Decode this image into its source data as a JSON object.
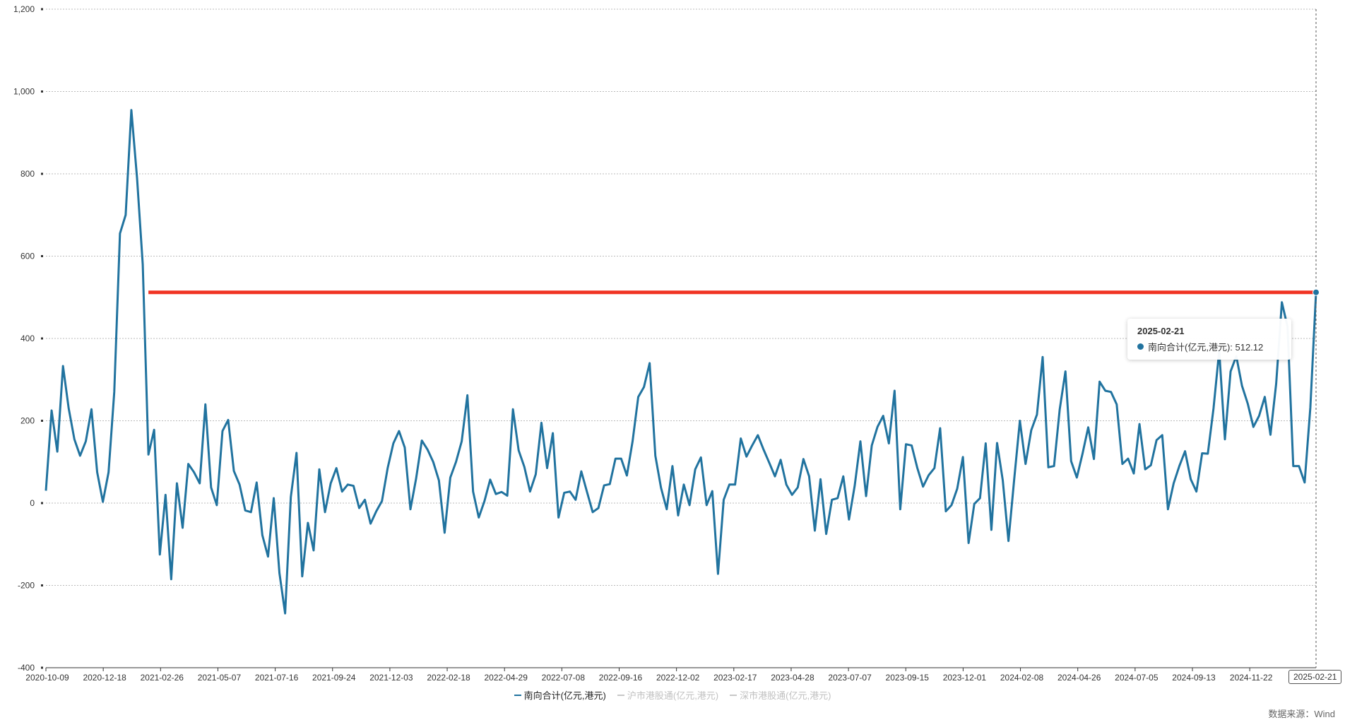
{
  "chart_data": {
    "type": "line",
    "ylim": [
      -400,
      1200
    ],
    "y_ticks": [
      -400,
      -200,
      0,
      200,
      400,
      600,
      800,
      1000,
      1200
    ],
    "y_tick_labels": [
      "-400",
      "-200",
      "0",
      "200",
      "400",
      "600",
      "800",
      "1,000",
      "1,200"
    ],
    "x_tick_labels": [
      "2020-10-09",
      "2020-12-18",
      "2021-02-26",
      "2021-05-07",
      "2021-07-16",
      "2021-09-24",
      "2021-12-03",
      "2022-02-18",
      "2022-04-29",
      "2022-07-08",
      "2022-09-16",
      "2022-12-02",
      "2023-02-17",
      "2023-04-28",
      "2023-07-07",
      "2023-09-15",
      "2023-12-01",
      "2024-02-08",
      "2024-04-26",
      "2024-07-05",
      "2024-09-13",
      "2024-11-22"
    ],
    "grid": true,
    "series": [
      {
        "name": "南向合计(亿元,港元)",
        "color": "#21739f",
        "values": [
          30,
          225,
          125,
          333,
          230,
          155,
          115,
          150,
          228,
          75,
          3,
          75,
          270,
          655,
          700,
          955,
          790,
          580,
          118,
          178,
          -125,
          20,
          -185,
          48,
          -60,
          95,
          75,
          48,
          240,
          38,
          -5,
          175,
          202,
          78,
          45,
          -18,
          -22,
          50,
          -78,
          -130,
          12,
          -170,
          -268,
          15,
          122,
          -178,
          -48,
          -115,
          82,
          -22,
          48,
          85,
          28,
          45,
          42,
          -12,
          8,
          -50,
          -20,
          5,
          85,
          145,
          175,
          135,
          -15,
          60,
          152,
          130,
          100,
          55,
          -72,
          62,
          100,
          150,
          262,
          28,
          -35,
          5,
          57,
          22,
          27,
          18,
          228,
          128,
          88,
          28,
          70,
          195,
          85,
          170,
          -35,
          25,
          28,
          8,
          77,
          27,
          -22,
          -12,
          43,
          46,
          108,
          108,
          67,
          150,
          258,
          282,
          340,
          115,
          37,
          -15,
          90,
          -30,
          45,
          -5,
          82,
          111,
          -5,
          29,
          -172,
          8,
          45,
          45,
          157,
          113,
          140,
          165,
          130,
          98,
          65,
          105,
          45,
          20,
          38,
          107,
          65,
          -67,
          58,
          -75,
          8,
          12,
          65,
          -40,
          42,
          150,
          17,
          140,
          185,
          212,
          145,
          273,
          -15,
          143,
          140,
          85,
          40,
          68,
          85,
          182,
          -20,
          -5,
          35,
          112,
          -97,
          -2,
          12,
          145,
          -65,
          146,
          55,
          -92,
          57,
          200,
          95,
          177,
          215,
          355,
          87,
          90,
          228,
          320,
          102,
          62,
          120,
          184,
          107,
          295,
          273,
          270,
          240,
          95,
          108,
          72,
          192,
          82,
          92,
          153,
          165,
          -15,
          48,
          90,
          126,
          58,
          28,
          121,
          120,
          230,
          370,
          155,
          320,
          357,
          285,
          242,
          185,
          212,
          258,
          166,
          290,
          488,
          428,
          90,
          90,
          50,
          232,
          512.12
        ]
      }
    ],
    "reference_line": {
      "value": 512.12,
      "color": "#f03323"
    },
    "tooltip": {
      "date": "2025-02-21",
      "label": "南向合计(亿元,港元): 512.12"
    },
    "crosshair_label": "2025-02-21",
    "legend": [
      {
        "label": "南向合计(亿元,港元)",
        "color": "#21739f",
        "active": true
      },
      {
        "label": "沪市港股通(亿元,港元)",
        "color": "#c8c8c8",
        "active": false
      },
      {
        "label": "深市港股通(亿元,港元)",
        "color": "#c8c8c8",
        "active": false
      }
    ],
    "source": "数据来源：Wind"
  }
}
